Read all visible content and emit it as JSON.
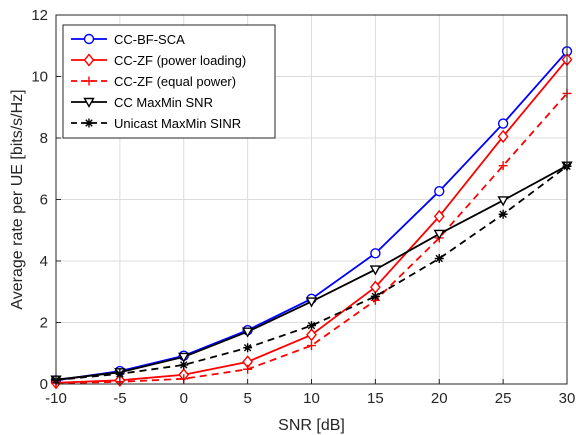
{
  "chart_data": {
    "type": "line",
    "xlabel": "SNR [dB]",
    "ylabel": "Average rate per UE [bits/s/Hz]",
    "xlim": [
      -10,
      30
    ],
    "ylim": [
      0,
      12
    ],
    "xticks": [
      -10,
      -5,
      0,
      5,
      10,
      15,
      20,
      25,
      30
    ],
    "yticks": [
      0,
      2,
      4,
      6,
      8,
      10,
      12
    ],
    "grid": true,
    "legend_position": "top-left",
    "x": [
      -10,
      -5,
      0,
      5,
      10,
      15,
      20,
      25,
      30
    ],
    "series": [
      {
        "name": "CC-BF-SCA",
        "color": "#0000ff",
        "dash": "solid",
        "marker": "circle",
        "values": [
          0.12,
          0.42,
          0.92,
          1.75,
          2.77,
          4.25,
          6.27,
          8.47,
          10.82
        ]
      },
      {
        "name": "CC-ZF (power loading)",
        "color": "#ff0000",
        "dash": "solid",
        "marker": "diamond",
        "values": [
          0.04,
          0.12,
          0.3,
          0.72,
          1.6,
          3.15,
          5.45,
          8.05,
          10.55
        ]
      },
      {
        "name": "CC-ZF (equal power)",
        "color": "#ff0000",
        "dash": "dashed",
        "marker": "plus",
        "values": [
          0.03,
          0.07,
          0.17,
          0.48,
          1.25,
          2.72,
          4.75,
          7.1,
          9.45
        ]
      },
      {
        "name": "CC MaxMin SNR",
        "color": "#000000",
        "dash": "solid",
        "marker": "triangle-down",
        "values": [
          0.14,
          0.38,
          0.88,
          1.7,
          2.68,
          3.72,
          4.88,
          5.97,
          7.1
        ]
      },
      {
        "name": "Unicast MaxMin SINR",
        "color": "#000000",
        "dash": "dashed",
        "marker": "asterisk",
        "values": [
          0.13,
          0.33,
          0.62,
          1.18,
          1.9,
          2.85,
          4.08,
          5.52,
          7.08
        ]
      }
    ]
  }
}
